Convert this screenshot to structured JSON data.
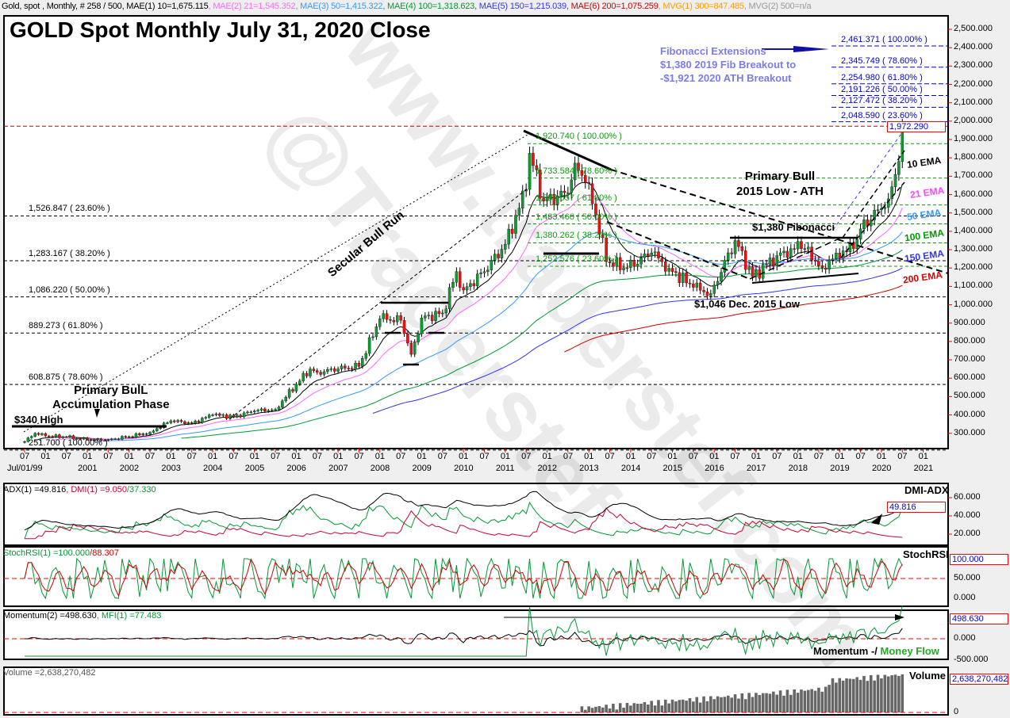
{
  "legend": [
    {
      "text": "Gold, spot , Monthly, # 258 / 500, MAE(1) 10=1,675.115",
      "color": "#000000"
    },
    {
      "text": ", MAE(2) 21=1,545.352",
      "color": "#ff66ff"
    },
    {
      "text": ", MAE(3) 50=1,415.322",
      "color": "#3399ff"
    },
    {
      "text": ", MAE(4) 100=1,318.623",
      "color": "#009933"
    },
    {
      "text": ", MAE(5) 150=1,215.039",
      "color": "#3333ff"
    },
    {
      "text": ", MAE(6) 200=1,075.259",
      "color": "#cc0000"
    },
    {
      "text": ", MVG(1) 300=847.485",
      "color": "#ff9900"
    },
    {
      "text": ", MVG(2) 500=n/a",
      "color": "#999999"
    }
  ],
  "title": "GOLD Spot Monthly July 31, 2020 Close",
  "watermark": [
    "@Traderstef",
    "www.traderstef.com"
  ],
  "annotations": {
    "fib_ext": [
      "Fibonacci Extensions",
      "$1,380 2019 Fib Breakout to",
      "-$1,921 2020 ATH Breakout"
    ],
    "primary_bull": [
      "Primary Bull",
      "2015 Low - ATH"
    ],
    "fib_1380": "$1,380 Fibonacci",
    "low_2015": "$1,046 Dec. 2015 Low",
    "secular": "Secular Bull Run",
    "accum": [
      "Primary BulL",
      "Accumulation Phase"
    ],
    "high_340": "$340 High",
    "ema_labels": [
      {
        "text": "10 EMA",
        "color": "#000000"
      },
      {
        "text": "21 EMA",
        "color": "#ff44ff"
      },
      {
        "text": "50 EMA",
        "color": "#3399ff"
      },
      {
        "text": "100 EMA",
        "color": "#009900"
      },
      {
        "text": "150 EMA",
        "color": "#3333ff"
      },
      {
        "text": "200 EMA",
        "color": "#dd0000"
      }
    ]
  },
  "fib_black": [
    {
      "label": "1,526.847 ( 23.60% )",
      "value": 1526.847
    },
    {
      "label": "1,283.167 ( 38.20% )",
      "value": 1283.167
    },
    {
      "label": "1,086.220 ( 50.00% )",
      "value": 1086.22
    },
    {
      "label": "889.273 ( 61.80% )",
      "value": 889.273
    },
    {
      "label": "608.875 ( 78.60% )",
      "value": 608.875
    },
    {
      "label": "251.700 ( 100.00% )",
      "value": 251.7
    }
  ],
  "fib_green": [
    {
      "label": "1,920.740 ( 100.00% )",
      "value": 1920.74
    },
    {
      "label": "1,733.584 ( 78.60% )",
      "value": 1733.584
    },
    {
      "label": "1,586.657 ( 61.80% )",
      "value": 1586.657
    },
    {
      "label": "1,483.460 ( 50.00% )",
      "value": 1483.46
    },
    {
      "label": "1,380.262 ( 38.20% )",
      "value": 1380.262
    },
    {
      "label": "1,252.576 ( 23.60% )",
      "value": 1252.576
    }
  ],
  "fib_blue": [
    {
      "label": "2,461.371 ( 100.00% )",
      "value": 2461.371
    },
    {
      "label": "2,345.749 ( 78.60% )",
      "value": 2345.749
    },
    {
      "label": "2,254.980 ( 61.80% )",
      "value": 2254.98
    },
    {
      "label": "2,191.226 ( 50.00% )",
      "value": 2191.226
    },
    {
      "label": "2,127.472 ( 38.20% )",
      "value": 2127.472
    },
    {
      "label": "2,048.590 ( 23.60% )",
      "value": 2048.59
    }
  ],
  "last_price": "1,972.290",
  "panels": {
    "adx": {
      "legend_a": "ADX(1)",
      "legend_a_val": "=49.816",
      "legend_b": ", DMI(1)",
      "legend_b_val1": "=9.050",
      "legend_b_val2": "/37.330",
      "title": "DMI-ADX",
      "last": "49.816",
      "ticks": [
        "60.000",
        "40.000",
        "20.000"
      ]
    },
    "stoch": {
      "legend": "StochRSI(1)",
      "val1": "=100.000",
      "val2": "/88.307",
      "title": "StochRSI",
      "last": "100.000",
      "ticks": [
        "50.000",
        "0.000"
      ]
    },
    "mom": {
      "legend_a": "Momentum(2)",
      "val_a": "=498.630",
      "legend_b": ", MFI(1)",
      "val_b": "=77.483",
      "title_a": "Momentum -/",
      "title_b": "Money Flow",
      "last": "498.630",
      "ticks": [
        "0.000",
        "-500.000"
      ]
    },
    "vol": {
      "legend": "Volume =2,638,270,482",
      "title": "Volume",
      "last": "2,638,270,482",
      "ticks": [
        "0"
      ]
    }
  },
  "chart_data": {
    "type": "candlestick",
    "title": "GOLD Spot Monthly July 31, 2020 Close",
    "ylim": [
      250,
      2550
    ],
    "yticks": [
      300,
      400,
      500,
      600,
      700,
      800,
      900,
      1000,
      1100,
      1200,
      1300,
      1400,
      1500,
      1600,
      1700,
      1800,
      1900,
      2000,
      2100,
      2200,
      2300,
      2400,
      2500
    ],
    "xtick_years": [
      "Jul/01/99",
      "2001",
      "2002",
      "2003",
      "2004",
      "2005",
      "2006",
      "2007",
      "2008",
      "2009",
      "2010",
      "2011",
      "2012",
      "2013",
      "2014",
      "2015",
      "2016",
      "2017",
      "2018",
      "2019",
      "2020",
      "2021"
    ],
    "ema_periods": [
      10,
      21,
      50,
      100,
      150,
      200
    ],
    "ema_colors": [
      "#000000",
      "#ff66ff",
      "#3399ff",
      "#009933",
      "#3333ff",
      "#cc0000"
    ],
    "close_anchors": [
      [
        "1999-07",
        255
      ],
      [
        "1999-10",
        300
      ],
      [
        "2000-01",
        285
      ],
      [
        "2000-07",
        280
      ],
      [
        "2001-01",
        265
      ],
      [
        "2001-07",
        265
      ],
      [
        "2002-01",
        282
      ],
      [
        "2002-07",
        305
      ],
      [
        "2003-01",
        368
      ],
      [
        "2003-07",
        355
      ],
      [
        "2004-01",
        400
      ],
      [
        "2004-07",
        390
      ],
      [
        "2005-01",
        422
      ],
      [
        "2005-07",
        430
      ],
      [
        "2006-01",
        568
      ],
      [
        "2006-05",
        650
      ],
      [
        "2006-07",
        632
      ],
      [
        "2007-01",
        650
      ],
      [
        "2007-07",
        665
      ],
      [
        "2008-01",
        923
      ],
      [
        "2008-03",
        920
      ],
      [
        "2008-07",
        915
      ],
      [
        "2008-10",
        730
      ],
      [
        "2009-01",
        928
      ],
      [
        "2009-07",
        955
      ],
      [
        "2009-11",
        1180
      ],
      [
        "2010-01",
        1080
      ],
      [
        "2010-07",
        1180
      ],
      [
        "2011-01",
        1330
      ],
      [
        "2011-07",
        1628
      ],
      [
        "2011-08",
        1825
      ],
      [
        "2011-12",
        1565
      ],
      [
        "2012-07",
        1610
      ],
      [
        "2012-09",
        1772
      ],
      [
        "2013-01",
        1660
      ],
      [
        "2013-06",
        1234
      ],
      [
        "2013-12",
        1202
      ],
      [
        "2014-07",
        1282
      ],
      [
        "2014-12",
        1199
      ],
      [
        "2015-07",
        1095
      ],
      [
        "2015-12",
        1061
      ],
      [
        "2016-07",
        1350
      ],
      [
        "2016-12",
        1152
      ],
      [
        "2017-07",
        1268
      ],
      [
        "2017-12",
        1303
      ],
      [
        "2018-01",
        1345
      ],
      [
        "2018-08",
        1201
      ],
      [
        "2018-12",
        1282
      ],
      [
        "2019-05",
        1305
      ],
      [
        "2019-07",
        1413
      ],
      [
        "2019-12",
        1517
      ],
      [
        "2020-03",
        1577
      ],
      [
        "2020-06",
        1780
      ],
      [
        "2020-07",
        1972.29
      ]
    ]
  }
}
